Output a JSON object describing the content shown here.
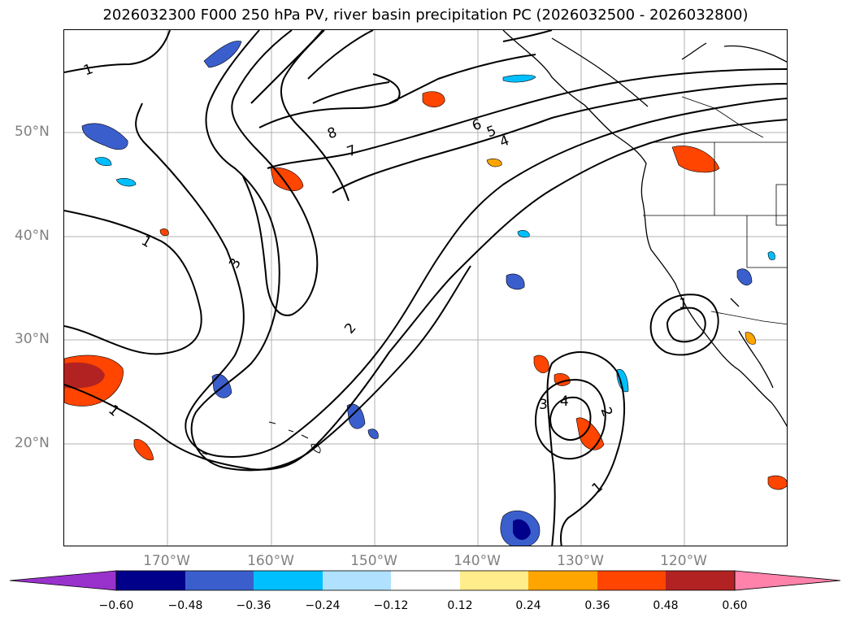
{
  "title": "2026032300 F000 250 hPa PV, river basin precipitation PC (2026032500 - 2026032800)",
  "lat_labels": [
    "50°N",
    "40°N",
    "30°N",
    "20°N"
  ],
  "lon_labels": [
    "170°W",
    "160°W",
    "150°W",
    "140°W",
    "130°W",
    "120°W"
  ],
  "contour_labels": [
    "1",
    "1",
    "1",
    "1",
    "2",
    "2",
    "3",
    "3",
    "4",
    "4",
    "5",
    "6",
    "7",
    "8",
    "1"
  ],
  "colorbar": {
    "ticks": [
      "−0.60",
      "−0.48",
      "−0.36",
      "−0.24",
      "−0.12",
      "0.12",
      "0.24",
      "0.36",
      "0.48",
      "0.60"
    ],
    "colors": [
      "#9932cc",
      "#00008b",
      "#3a5fcd",
      "#00bfff",
      "#b0e2ff",
      "#ffffff",
      "#ffec8b",
      "#ffa500",
      "#ff4500",
      "#b22222",
      "#ff82ab"
    ]
  }
}
